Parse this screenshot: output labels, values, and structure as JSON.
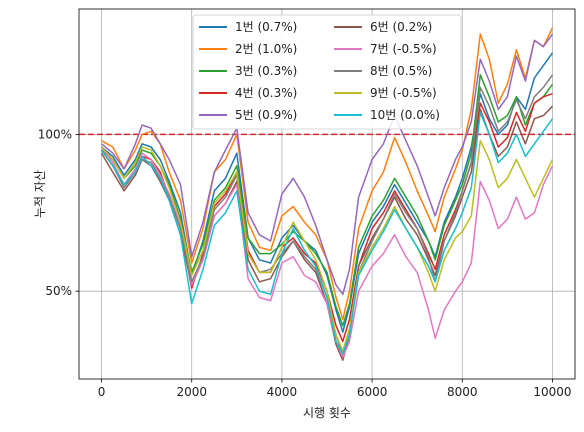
{
  "chart_data": {
    "type": "line",
    "title": "",
    "xlabel": "시행 횟수",
    "ylabel": "누적 자산",
    "xlim": [
      -500,
      10500
    ],
    "ylim": [
      0.22,
      1.4
    ],
    "xticks": [
      0,
      2000,
      4000,
      6000,
      8000,
      10000
    ],
    "xtick_labels": [
      "0",
      "2000",
      "4000",
      "6000",
      "8000",
      "10000"
    ],
    "yticks": [
      0.5,
      1.0
    ],
    "ytick_labels": [
      "50%",
      "100%"
    ],
    "grid": true,
    "legend_position": "top-center",
    "legend_columns": 2,
    "reference_line": {
      "y": 1.0,
      "color": "#d62728",
      "style": "dashed"
    },
    "x": [
      0,
      250,
      500,
      750,
      900,
      1100,
      1300,
      1500,
      1750,
      2000,
      2250,
      2500,
      2750,
      3000,
      3250,
      3500,
      3750,
      4000,
      4250,
      4500,
      4750,
      5000,
      5200,
      5350,
      5500,
      5700,
      6000,
      6250,
      6500,
      6750,
      7000,
      7250,
      7400,
      7600,
      7850,
      8000,
      8200,
      8400,
      8600,
      8800,
      9000,
      9200,
      9400,
      9600,
      9800,
      10000
    ],
    "series": [
      {
        "name": "1번 (0.7%)",
        "color": "#1f77b4",
        "values": [
          0.96,
          0.93,
          0.87,
          0.92,
          0.97,
          0.96,
          0.92,
          0.85,
          0.75,
          0.55,
          0.66,
          0.82,
          0.86,
          0.94,
          0.67,
          0.6,
          0.59,
          0.67,
          0.71,
          0.66,
          0.63,
          0.55,
          0.44,
          0.37,
          0.45,
          0.62,
          0.72,
          0.77,
          0.84,
          0.78,
          0.72,
          0.66,
          0.61,
          0.72,
          0.8,
          0.86,
          0.96,
          1.13,
          1.05,
          1.0,
          1.03,
          1.12,
          1.08,
          1.18,
          1.22,
          1.26
        ]
      },
      {
        "name": "2번 (1.0%)",
        "color": "#ff7f0e",
        "values": [
          0.98,
          0.96,
          0.89,
          0.95,
          1.0,
          1.01,
          0.97,
          0.88,
          0.79,
          0.59,
          0.7,
          0.88,
          0.92,
          1.0,
          0.72,
          0.64,
          0.63,
          0.74,
          0.77,
          0.72,
          0.68,
          0.6,
          0.48,
          0.41,
          0.5,
          0.7,
          0.82,
          0.88,
          0.99,
          0.91,
          0.82,
          0.74,
          0.69,
          0.8,
          0.89,
          0.95,
          1.08,
          1.32,
          1.24,
          1.1,
          1.16,
          1.27,
          1.18,
          1.3,
          1.28,
          1.34
        ]
      },
      {
        "name": "3번 (0.3%)",
        "color": "#2ca02c",
        "values": [
          0.95,
          0.92,
          0.86,
          0.9,
          0.95,
          0.94,
          0.9,
          0.84,
          0.73,
          0.56,
          0.65,
          0.79,
          0.83,
          0.9,
          0.67,
          0.62,
          0.62,
          0.65,
          0.69,
          0.66,
          0.62,
          0.56,
          0.45,
          0.39,
          0.46,
          0.64,
          0.74,
          0.79,
          0.86,
          0.8,
          0.74,
          0.66,
          0.6,
          0.71,
          0.79,
          0.84,
          0.94,
          1.19,
          1.12,
          1.04,
          1.06,
          1.12,
          1.03,
          1.1,
          1.12,
          1.16
        ]
      },
      {
        "name": "4번 (0.3%)",
        "color": "#d62728",
        "values": [
          0.95,
          0.9,
          0.84,
          0.88,
          0.93,
          0.92,
          0.88,
          0.8,
          0.7,
          0.51,
          0.62,
          0.77,
          0.81,
          0.88,
          0.63,
          0.56,
          0.56,
          0.64,
          0.67,
          0.62,
          0.59,
          0.5,
          0.39,
          0.34,
          0.41,
          0.58,
          0.7,
          0.75,
          0.82,
          0.76,
          0.7,
          0.62,
          0.57,
          0.68,
          0.76,
          0.82,
          0.91,
          1.1,
          1.04,
          0.96,
          0.99,
          1.07,
          1.01,
          1.1,
          1.12,
          1.13
        ]
      },
      {
        "name": "5번 (0.9%)",
        "color": "#9467bd",
        "values": [
          0.97,
          0.94,
          0.89,
          0.97,
          1.03,
          1.02,
          0.97,
          0.92,
          0.84,
          0.61,
          0.72,
          0.88,
          0.95,
          1.02,
          0.75,
          0.68,
          0.66,
          0.81,
          0.86,
          0.8,
          0.71,
          0.6,
          0.52,
          0.49,
          0.57,
          0.8,
          0.92,
          0.97,
          1.06,
          0.98,
          0.9,
          0.8,
          0.74,
          0.83,
          0.92,
          0.96,
          1.04,
          1.24,
          1.17,
          1.08,
          1.12,
          1.25,
          1.17,
          1.3,
          1.28,
          1.32
        ]
      },
      {
        "name": "6번 (0.2%)",
        "color": "#8c564b",
        "values": [
          0.94,
          0.88,
          0.82,
          0.87,
          0.92,
          0.9,
          0.85,
          0.79,
          0.68,
          0.52,
          0.6,
          0.74,
          0.78,
          0.85,
          0.6,
          0.53,
          0.54,
          0.61,
          0.66,
          0.6,
          0.56,
          0.46,
          0.33,
          0.28,
          0.36,
          0.58,
          0.67,
          0.73,
          0.8,
          0.73,
          0.68,
          0.6,
          0.55,
          0.66,
          0.74,
          0.8,
          0.88,
          1.08,
          1.0,
          0.93,
          0.96,
          1.04,
          0.97,
          1.05,
          1.06,
          1.09
        ]
      },
      {
        "name": "7번 (-0.5%)",
        "color": "#e377c2",
        "values": [
          0.96,
          0.91,
          0.84,
          0.89,
          0.94,
          0.92,
          0.87,
          0.81,
          0.71,
          0.52,
          0.6,
          0.74,
          0.78,
          0.84,
          0.54,
          0.48,
          0.47,
          0.59,
          0.61,
          0.55,
          0.53,
          0.46,
          0.34,
          0.29,
          0.34,
          0.5,
          0.58,
          0.62,
          0.68,
          0.61,
          0.56,
          0.44,
          0.35,
          0.44,
          0.5,
          0.53,
          0.59,
          0.85,
          0.79,
          0.7,
          0.73,
          0.8,
          0.73,
          0.75,
          0.84,
          0.9
        ]
      },
      {
        "name": "8번 (0.5%)",
        "color": "#7f7f7f",
        "values": [
          0.95,
          0.9,
          0.83,
          0.88,
          0.92,
          0.91,
          0.86,
          0.8,
          0.7,
          0.53,
          0.61,
          0.76,
          0.8,
          0.87,
          0.62,
          0.56,
          0.57,
          0.62,
          0.66,
          0.61,
          0.57,
          0.48,
          0.36,
          0.3,
          0.38,
          0.56,
          0.66,
          0.73,
          0.81,
          0.75,
          0.7,
          0.61,
          0.53,
          0.66,
          0.75,
          0.82,
          0.91,
          1.15,
          1.09,
          1.01,
          1.04,
          1.11,
          1.05,
          1.12,
          1.15,
          1.19
        ]
      },
      {
        "name": "9번 (-0.5%)",
        "color": "#bcbd22",
        "values": [
          0.96,
          0.92,
          0.86,
          0.91,
          0.96,
          0.95,
          0.9,
          0.83,
          0.72,
          0.55,
          0.63,
          0.78,
          0.82,
          0.88,
          0.62,
          0.56,
          0.56,
          0.64,
          0.72,
          0.66,
          0.6,
          0.5,
          0.36,
          0.31,
          0.38,
          0.56,
          0.64,
          0.7,
          0.77,
          0.7,
          0.64,
          0.56,
          0.5,
          0.6,
          0.67,
          0.69,
          0.74,
          0.98,
          0.92,
          0.83,
          0.86,
          0.92,
          0.86,
          0.8,
          0.86,
          0.92
        ]
      },
      {
        "name": "10번 (0.0%)",
        "color": "#17becf",
        "values": [
          0.95,
          0.9,
          0.84,
          0.88,
          0.93,
          0.9,
          0.86,
          0.79,
          0.68,
          0.46,
          0.57,
          0.71,
          0.75,
          0.82,
          0.57,
          0.5,
          0.49,
          0.62,
          0.7,
          0.63,
          0.58,
          0.48,
          0.34,
          0.3,
          0.36,
          0.55,
          0.63,
          0.69,
          0.76,
          0.7,
          0.64,
          0.58,
          0.53,
          0.63,
          0.7,
          0.75,
          0.83,
          1.07,
          1.0,
          0.91,
          0.94,
          1.0,
          0.93,
          0.97,
          1.01,
          1.05
        ]
      }
    ]
  }
}
